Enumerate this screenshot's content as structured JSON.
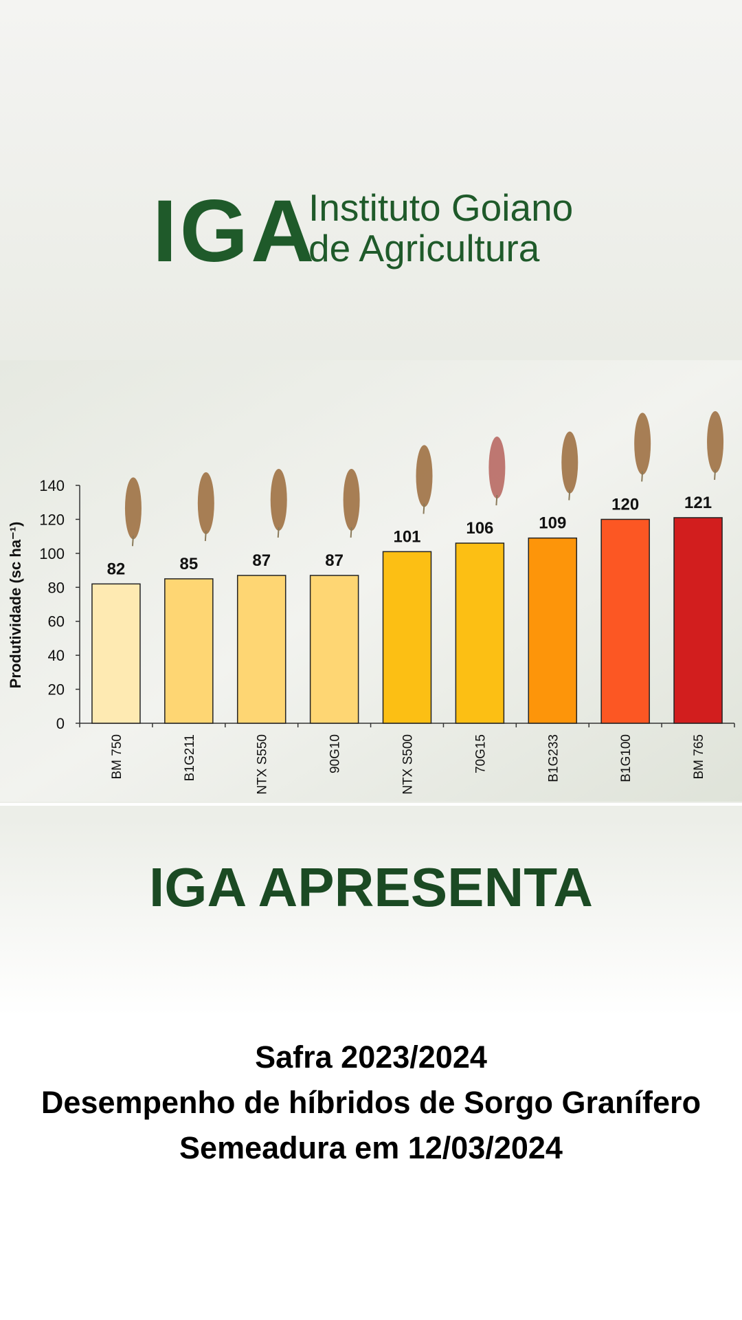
{
  "logo": {
    "mark": "IGA",
    "line1": "Instituto Goiano",
    "line2": "de Agricultura"
  },
  "chart_data": {
    "type": "bar",
    "y_label": "Produtividade (sc ha⁻¹)",
    "categories": [
      "BM 750",
      "B1G211",
      "NTX S550",
      "90G10",
      "NTX S500",
      "70G15",
      "B1G233",
      "B1G100",
      "BM 765"
    ],
    "values": [
      82,
      85,
      87,
      87,
      101,
      106,
      109,
      120,
      121
    ],
    "colors": [
      "#feeab2",
      "#fed673",
      "#fed673",
      "#fed673",
      "#fcbf14",
      "#fcbf14",
      "#fd950a",
      "#fc5723",
      "#d21e1e"
    ],
    "ylim": [
      0,
      140
    ],
    "yticks": [
      0,
      20,
      40,
      60,
      80,
      100,
      120,
      140
    ]
  },
  "heading": "IGA APRESENTA",
  "caption": [
    "Safra 2023/2024",
    "Desempenho de híbridos de Sorgo Granífero",
    "Semeadura em 12/03/2024"
  ]
}
